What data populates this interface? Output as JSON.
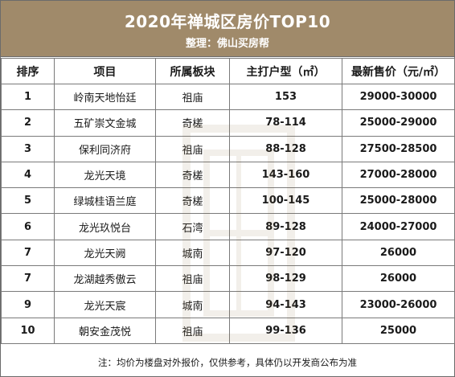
{
  "header": {
    "title": "2020年禅城区房价TOP10",
    "subtitle": "整理：佛山买房帮"
  },
  "table": {
    "columns": [
      "排序",
      "项目",
      "所属板块",
      "主打户型（㎡）",
      "最新售价（元/㎡）"
    ],
    "rows": [
      {
        "rank": "1",
        "name": "岭南天地怡廷",
        "area": "祖庙",
        "size": "153",
        "price": "29000-30000"
      },
      {
        "rank": "2",
        "name": "五矿崇文金城",
        "area": "奇槎",
        "size": "78-114",
        "price": "25000-29000"
      },
      {
        "rank": "3",
        "name": "保利同济府",
        "area": "祖庙",
        "size": "88-128",
        "price": "27500-28500"
      },
      {
        "rank": "4",
        "name": "龙光天境",
        "area": "奇槎",
        "size": "143-160",
        "price": "27000-28000"
      },
      {
        "rank": "5",
        "name": "绿城桂语兰庭",
        "area": "奇槎",
        "size": "100-145",
        "price": "25000-28000"
      },
      {
        "rank": "6",
        "name": "龙光玖悦台",
        "area": "石湾",
        "size": "89-128",
        "price": "24000-27000"
      },
      {
        "rank": "7",
        "name": "龙光天阙",
        "area": "城南",
        "size": "97-120",
        "price": "26000"
      },
      {
        "rank": "7",
        "name": "龙湖越秀傲云",
        "area": "祖庙",
        "size": "98-129",
        "price": "26000"
      },
      {
        "rank": "9",
        "name": "龙光天宸",
        "area": "城南",
        "size": "94-143",
        "price": "23000-26000"
      },
      {
        "rank": "10",
        "name": "朝安金茂悦",
        "area": "祖庙",
        "size": "99-136",
        "price": "25000"
      }
    ]
  },
  "note": "注：均价为楼盘对外报价，仅供参考，具体仍以开发商公布为准",
  "colors": {
    "header_bg": "#a08a6a",
    "header_text": "#ffffff",
    "border": "#7a7a7a"
  }
}
